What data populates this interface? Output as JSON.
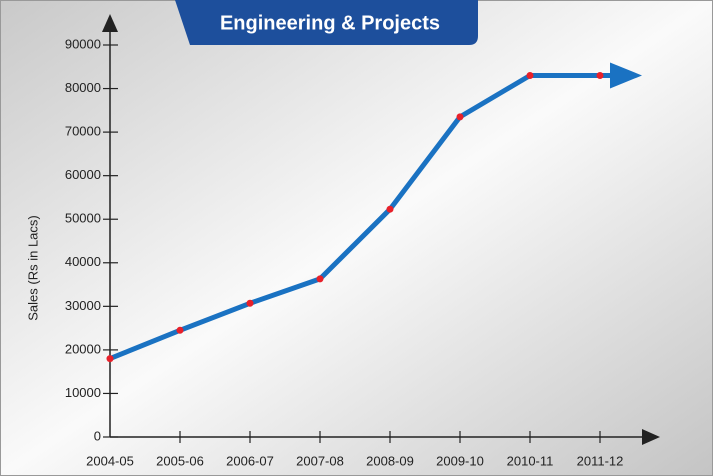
{
  "chart_data": {
    "type": "line",
    "title": "Engineering & Projects",
    "y_label": "Sales (Rs in Lacs)",
    "categories": [
      "2004-05",
      "2005-06",
      "2006-07",
      "2007-08",
      "2008-09",
      "2009-10",
      "2010-11",
      "2011-12"
    ],
    "series": [
      {
        "name": "Sales",
        "color": "#1a72c2",
        "marker_color": "#e8202a",
        "values": [
          18000,
          24500,
          30700,
          36300,
          52300,
          73500,
          83000,
          83000
        ]
      }
    ],
    "ylim": [
      0,
      90000
    ],
    "yticks": [
      0,
      10000,
      20000,
      30000,
      40000,
      50000,
      60000,
      70000,
      80000,
      90000
    ]
  }
}
